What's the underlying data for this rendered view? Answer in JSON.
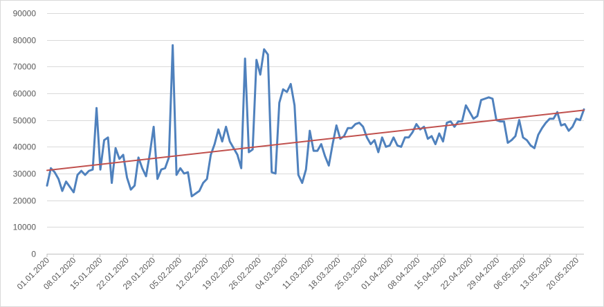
{
  "chart_data": {
    "type": "line",
    "title": "",
    "xlabel": "",
    "ylabel": "",
    "ylim": [
      0,
      90000
    ],
    "y_ticks": [
      0,
      10000,
      20000,
      30000,
      40000,
      50000,
      60000,
      70000,
      80000,
      90000
    ],
    "y_tick_labels": [
      "0",
      "10000",
      "20000",
      "30000",
      "40000",
      "50000",
      "60000",
      "70000",
      "80000",
      "90000"
    ],
    "grid": true,
    "legend": "none",
    "x_start": "01.01.2020",
    "x_end": "22.05.2020",
    "x_tick_labels": [
      "01.01.2020",
      "08.01.2020",
      "15.01.2020",
      "22.01.2020",
      "29.01.2020",
      "05.02.2020",
      "12.02.2020",
      "19.02.2020",
      "26.02.2020",
      "04.03.2020",
      "11.03.2020",
      "18.03.2020",
      "25.03.2020",
      "01.04.2020",
      "08.04.2020",
      "15.04.2020",
      "22.04.2020",
      "29.04.2020",
      "06.05.2020",
      "13.05.2020",
      "20.05.2020"
    ],
    "series": [
      {
        "color": "#4f81bd",
        "values": [
          25500,
          32000,
          30500,
          28000,
          23500,
          27000,
          25000,
          23000,
          29500,
          31000,
          29500,
          31000,
          31500,
          54500,
          31500,
          42500,
          43500,
          26500,
          39500,
          35500,
          37000,
          28500,
          24000,
          25500,
          36000,
          32000,
          29000,
          37500,
          47500,
          28000,
          31500,
          32000,
          36000,
          78000,
          29500,
          32000,
          30000,
          30500,
          21500,
          22500,
          23500,
          26500,
          28000,
          37000,
          41000,
          46500,
          42000,
          47500,
          42000,
          39500,
          37000,
          32000,
          73000,
          38000,
          39000,
          72500,
          67000,
          76500,
          74500,
          30500,
          30000,
          56500,
          61500,
          60500,
          63500,
          55500,
          29500,
          26500,
          31500,
          46000,
          38500,
          38500,
          41000,
          36500,
          33000,
          41000,
          48000,
          43000,
          44000,
          47000,
          47000,
          48500,
          49000,
          47500,
          43500,
          41000,
          42500,
          38000,
          43500,
          40000,
          40500,
          43500,
          40500,
          40000,
          43500,
          43500,
          45500,
          48500,
          46500,
          47500,
          43000,
          44000,
          41000,
          45000,
          42000,
          49000,
          49500,
          47500,
          49500,
          49500,
          55500,
          53000,
          50500,
          51500,
          57500,
          58000,
          58500,
          58000,
          50000,
          49500,
          49500,
          41500,
          42500,
          44000,
          50000,
          43500,
          42500,
          40500,
          39500,
          44500,
          47000,
          49000,
          50500,
          50500,
          53000,
          48000,
          48500,
          46000,
          47500,
          50500,
          50000,
          54000
        ]
      },
      {
        "color": "#c0504d",
        "kind": "trendline",
        "values": [
          31200,
          53700
        ]
      }
    ]
  }
}
